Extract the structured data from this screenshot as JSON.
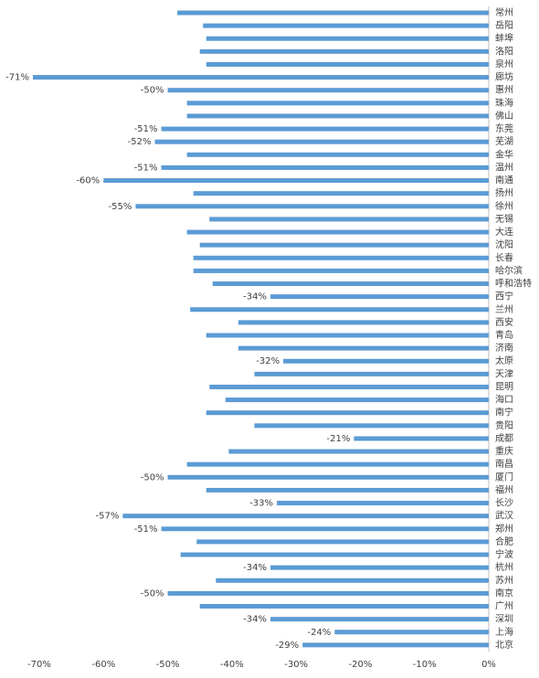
{
  "chart_data": {
    "type": "bar",
    "orientation": "horizontal",
    "color": "#5b9bd5",
    "categories": [
      "常州",
      "岳阳",
      "蚌埠",
      "洛阳",
      "泉州",
      "廊坊",
      "惠州",
      "珠海",
      "佛山",
      "东莞",
      "芜湖",
      "金华",
      "温州",
      "南通",
      "扬州",
      "徐州",
      "无锡",
      "大连",
      "沈阳",
      "长春",
      "哈尔滨",
      "呼和浩特",
      "西宁",
      "兰州",
      "西安",
      "青岛",
      "济南",
      "太原",
      "天津",
      "昆明",
      "海口",
      "南宁",
      "贵阳",
      "成都",
      "重庆",
      "南昌",
      "厦门",
      "福州",
      "长沙",
      "武汉",
      "郑州",
      "合肥",
      "宁波",
      "杭州",
      "苏州",
      "南京",
      "广州",
      "深圳",
      "上海",
      "北京"
    ],
    "values": [
      -48.5,
      -44.5,
      -44,
      -45,
      -44,
      -71,
      -50,
      -47,
      -47,
      -51,
      -52,
      -47,
      -51,
      -60,
      -46,
      -55,
      -43.5,
      -47,
      -45,
      -46,
      -46,
      -43,
      -34,
      -46.5,
      -39,
      -44,
      -39,
      -32,
      -36.5,
      -43.5,
      -41,
      -44,
      -36.5,
      -21,
      -40.5,
      -47,
      -50,
      -44,
      -33,
      -57,
      -51,
      -45.5,
      -48,
      -34,
      -42.5,
      -50,
      -45,
      -34,
      -24,
      -29
    ],
    "value_labels": [
      null,
      null,
      null,
      null,
      null,
      "-71%",
      "-50%",
      null,
      null,
      "-51%",
      "-52%",
      null,
      "-51%",
      "-60%",
      null,
      "-55%",
      null,
      null,
      null,
      null,
      null,
      null,
      "-34%",
      null,
      null,
      null,
      null,
      "-32%",
      null,
      null,
      null,
      null,
      null,
      "-21%",
      null,
      null,
      "-50%",
      null,
      "-33%",
      "-57%",
      "-51%",
      null,
      null,
      "-34%",
      null,
      "-50%",
      null,
      "-34%",
      "-24%",
      "-29%"
    ],
    "xlim": [
      -70,
      0
    ],
    "xticks": [
      {
        "value": -70,
        "label": "-70%"
      },
      {
        "value": -60,
        "label": "-60%"
      },
      {
        "value": -50,
        "label": "-50%"
      },
      {
        "value": -40,
        "label": "-40%"
      },
      {
        "value": -30,
        "label": "-30%"
      },
      {
        "value": -20,
        "label": "-20%"
      },
      {
        "value": -10,
        "label": "-10%"
      },
      {
        "value": 0,
        "label": "0%"
      }
    ]
  }
}
